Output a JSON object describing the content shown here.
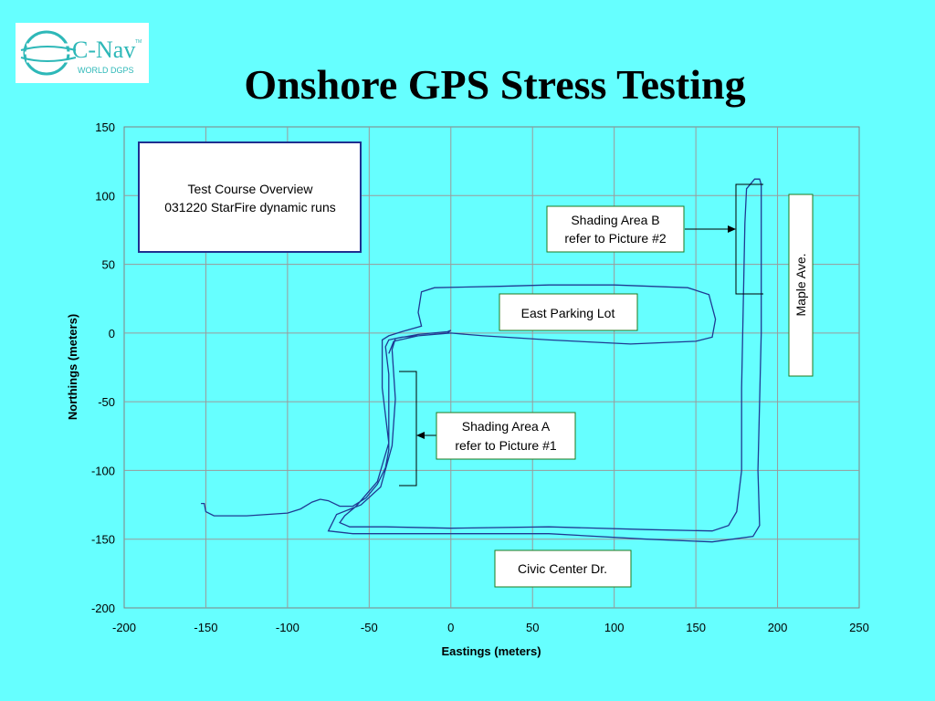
{
  "logo": {
    "brand": "C-Nav",
    "trademark": "TM",
    "tagline": "WORLD DGPS",
    "color": "#2eb8b8"
  },
  "title": "Onshore GPS Stress Testing",
  "colors": {
    "background": "#66ffff",
    "track": "#1f3a93",
    "grid": "#9a9a9a",
    "label_border": "#1f7a1f",
    "overview_border": "#1f2f8f"
  },
  "chart_data": {
    "type": "line",
    "xlabel": "Eastings (meters)",
    "ylabel": "Northings (meters)",
    "xlim": [
      -200,
      250
    ],
    "ylim": [
      -200,
      150
    ],
    "xticks": [
      "-200",
      "-150",
      "-100",
      "-50",
      "0",
      "50",
      "100",
      "150",
      "200",
      "250"
    ],
    "yticks": [
      "150",
      "100",
      "50",
      "0",
      "-50",
      "-100",
      "-150",
      "-200"
    ],
    "grid": true,
    "series": [
      {
        "values": [
          [
            -153,
            -124
          ],
          [
            -151,
            -124
          ],
          [
            -150,
            -130
          ],
          [
            -145,
            -133
          ],
          [
            -125,
            -133
          ],
          [
            -100,
            -131
          ],
          [
            -92,
            -128
          ],
          [
            -85,
            -123
          ],
          [
            -80,
            -121
          ],
          [
            -75,
            -122
          ],
          [
            -68,
            -126
          ],
          [
            -60,
            -126
          ],
          [
            -52,
            -120
          ],
          [
            -45,
            -110
          ],
          [
            -40,
            -98
          ],
          [
            -38,
            -85
          ],
          [
            -38,
            -65
          ],
          [
            -38,
            -45
          ],
          [
            -38,
            -30
          ],
          [
            -40,
            -10
          ],
          [
            -38,
            -5
          ],
          [
            -30,
            -3
          ],
          [
            -10,
            -1
          ],
          [
            0,
            0
          ],
          [
            20,
            -2
          ],
          [
            60,
            -5
          ],
          [
            110,
            -8
          ],
          [
            150,
            -6
          ],
          [
            160,
            -3
          ],
          [
            162,
            10
          ],
          [
            158,
            28
          ],
          [
            145,
            33
          ],
          [
            100,
            35
          ],
          [
            60,
            35
          ],
          [
            30,
            34
          ],
          [
            -10,
            33
          ],
          [
            -18,
            30
          ],
          [
            -20,
            15
          ],
          [
            -18,
            5
          ],
          [
            -30,
            1
          ],
          [
            -38,
            -2
          ],
          [
            -42,
            -5
          ],
          [
            -42,
            -40
          ],
          [
            -38,
            -80
          ],
          [
            -45,
            -108
          ],
          [
            -58,
            -126
          ],
          [
            -65,
            -133
          ],
          [
            -68,
            -138
          ],
          [
            -62,
            -141
          ],
          [
            -40,
            -141
          ],
          [
            0,
            -142
          ],
          [
            60,
            -141
          ],
          [
            120,
            -143
          ],
          [
            160,
            -144
          ],
          [
            170,
            -140
          ],
          [
            175,
            -130
          ],
          [
            178,
            -100
          ],
          [
            178,
            -40
          ],
          [
            179,
            20
          ],
          [
            180,
            80
          ],
          [
            181,
            105
          ],
          [
            186,
            112
          ],
          [
            189,
            112
          ],
          [
            190,
            108
          ],
          [
            190,
            95
          ],
          [
            190,
            60
          ],
          [
            190,
            0
          ],
          [
            189,
            -50
          ],
          [
            188,
            -100
          ],
          [
            189,
            -140
          ],
          [
            185,
            -148
          ],
          [
            160,
            -152
          ],
          [
            120,
            -150
          ],
          [
            60,
            -146
          ],
          [
            0,
            -146
          ],
          [
            -60,
            -146
          ],
          [
            -75,
            -144
          ],
          [
            -70,
            -132
          ],
          [
            -55,
            -125
          ],
          [
            -43,
            -112
          ],
          [
            -36,
            -82
          ],
          [
            -34,
            -48
          ],
          [
            -36,
            -12
          ],
          [
            -34,
            -4
          ],
          [
            -20,
            -1
          ],
          [
            -2,
            1
          ],
          [
            0,
            2
          ],
          [
            -2,
            0
          ],
          [
            -20,
            -2
          ],
          [
            -35,
            -6
          ],
          [
            -38,
            -15
          ]
        ]
      }
    ],
    "annotations": {
      "overview": [
        "Test Course Overview",
        "031220 StarFire dynamic runs"
      ],
      "shading_b": [
        "Shading Area B",
        "refer to Picture #2"
      ],
      "east_parking": "East Parking Lot",
      "maple": "Maple Ave.",
      "shading_a": [
        "Shading Area A",
        "refer to Picture #1"
      ],
      "civic": "Civic Center Dr."
    }
  }
}
